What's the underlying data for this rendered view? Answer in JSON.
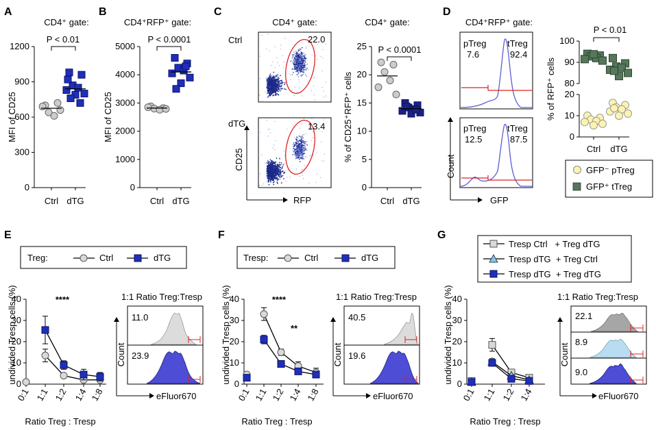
{
  "panels": {
    "A": {
      "letter": "A",
      "gate": "CD4⁺ gate:",
      "stat": "P < 0.01"
    },
    "B": {
      "letter": "B",
      "gate": "CD4⁺RFP⁺ gate:",
      "stat": "P < 0.0001"
    },
    "C": {
      "letter": "C",
      "gate1": "CD4⁺ gate:",
      "gate2": "CD4⁺ gate:",
      "stat": "P < 0.0001",
      "row1": "Ctrl",
      "row2": "dTG",
      "gate_pct_ctrl": "22.0",
      "gate_pct_dtg": "13.4",
      "flow_xlabel": "RFP",
      "flow_ylabel": "CD25"
    },
    "D": {
      "letter": "D",
      "gate": "CD4⁺RFP⁺ gate:",
      "stat": "P < 0.01",
      "hist_top": {
        "left_label": "pTreg",
        "left_val": "7.6",
        "right_label": "tTreg",
        "right_val": "92.4"
      },
      "hist_bottom": {
        "left_label": "pTreg",
        "left_val": "12.5",
        "right_label": "tTreg",
        "right_val": "87.5"
      },
      "hist_xlabel": "GFP",
      "hist_ylabel": "Count",
      "legend": [
        {
          "label": "GFP⁻ pTreg",
          "color": "#fdf3b0"
        },
        {
          "label": "GFP⁺ tTreg",
          "color": "#55775a"
        }
      ]
    },
    "E": {
      "letter": "E",
      "legend_title": "Treg:",
      "legend_items": [
        "Ctrl",
        "dTG"
      ],
      "sig": "****",
      "inset_title": "1:1 Ratio Treg:Tresp",
      "inset_values": [
        "11.0",
        "23.9"
      ],
      "inset_xlabel": "eFluor670",
      "inset_ylabel": "Count"
    },
    "F": {
      "letter": "F",
      "legend_title": "Tresp:",
      "legend_items": [
        "Ctrl",
        "dTG"
      ],
      "sig1": "****",
      "sig2": "**",
      "inset_title": "1:1 Ratio Treg:Tresp",
      "inset_values": [
        "40.5",
        "19.6"
      ],
      "inset_xlabel": "eFluor670",
      "inset_ylabel": "Count"
    },
    "G": {
      "letter": "G",
      "legend_items": [
        "Tresp Ctrl   + Treg dTG",
        "Tresp dTG  + Treg Ctrl",
        "Tresp dTG  + Treg dTG"
      ],
      "inset_title": "1:1 Ratio Treg:Tresp",
      "inset_values": [
        "22.1",
        "8.9",
        "9.0"
      ],
      "inset_xlabel": "eFluor670",
      "inset_ylabel": "Count"
    }
  },
  "chart_data": [
    {
      "id": "A",
      "type": "scatter",
      "ylabel": "MFI of CD25",
      "categories": [
        "Ctrl",
        "dTG"
      ],
      "yticks": [
        0,
        300,
        600,
        900,
        1200
      ],
      "ylim": [
        0,
        1200
      ],
      "series": [
        {
          "name": "Ctrl",
          "marker": "circle",
          "color": "#cccccc",
          "values": [
            700,
            720,
            640,
            610,
            690,
            660
          ],
          "mean": 675
        },
        {
          "name": "dTG",
          "marker": "square",
          "color": "#1f2fb8",
          "values": [
            980,
            960,
            870,
            850,
            830,
            800,
            790,
            760,
            720,
            920
          ],
          "mean": 840
        }
      ]
    },
    {
      "id": "B",
      "type": "scatter",
      "ylabel": "MFI of CD25",
      "categories": [
        "Ctrl",
        "dTG"
      ],
      "yticks": [
        0,
        1000,
        2000,
        3000,
        4000,
        5000
      ],
      "ylim": [
        0,
        5000
      ],
      "series": [
        {
          "name": "Ctrl",
          "marker": "circle",
          "color": "#cccccc",
          "values": [
            2880,
            2820,
            2800,
            2760,
            2850,
            2790
          ],
          "mean": 2820
        },
        {
          "name": "dTG",
          "marker": "square",
          "color": "#1f2fb8",
          "values": [
            4600,
            4400,
            4250,
            4150,
            4050,
            3900,
            3700,
            3500,
            4300
          ],
          "mean": 4100
        }
      ]
    },
    {
      "id": "C",
      "type": "scatter",
      "ylabel": "% of CD25⁺RFP⁺ cells",
      "categories": [
        "Ctrl",
        "dTG"
      ],
      "yticks": [
        0,
        5,
        10,
        15,
        20,
        25
      ],
      "ylim": [
        0,
        25
      ],
      "series": [
        {
          "name": "Ctrl",
          "marker": "circle",
          "color": "#cccccc",
          "values": [
            22.2,
            21.8,
            20.5,
            19.0,
            17.8,
            16.5
          ],
          "mean": 19.8
        },
        {
          "name": "dTG",
          "marker": "square",
          "color": "#1a237e",
          "values": [
            15.0,
            14.6,
            14.2,
            13.9,
            13.6,
            13.3,
            13.1,
            14.4,
            13.8
          ],
          "mean": 14.0
        }
      ]
    },
    {
      "id": "D",
      "type": "scatter",
      "ylabel": "% of RFP⁺ cells",
      "categories": [
        "Ctrl",
        "dTG"
      ],
      "yticks_top": [
        80,
        90,
        100
      ],
      "yticks_bottom": [
        0,
        10,
        20
      ],
      "ylim_top": [
        80,
        100
      ],
      "ylim_bottom": [
        0,
        20
      ],
      "series": [
        {
          "name": "GFP⁺ tTreg",
          "marker": "square",
          "color": "#55775a",
          "Ctrl": [
            94.0,
            93.2,
            92.8,
            92.0,
            91.5,
            90.8,
            93.8
          ],
          "dTG": [
            92.0,
            89.5,
            88.0,
            87.5,
            86.5,
            85.0,
            83.5,
            86.0
          ]
        },
        {
          "name": "GFP⁻ pTreg",
          "marker": "circle",
          "color": "#fdf3b0",
          "Ctrl": [
            10.0,
            9.0,
            8.2,
            7.5,
            7.0,
            6.2,
            5.5
          ],
          "dTG": [
            16.0,
            15.0,
            14.0,
            13.0,
            12.0,
            11.0,
            10.0,
            13.5
          ]
        }
      ]
    },
    {
      "id": "E",
      "type": "line",
      "ylabel": "undivided Tresp cells (%)",
      "xlabel": "Ratio Treg : Tresp",
      "categories": [
        "0:1",
        "1:1",
        "1:2",
        "1:4",
        "1:8"
      ],
      "yticks": [
        0,
        10,
        20,
        30,
        40
      ],
      "ylim": [
        0,
        40
      ],
      "series": [
        {
          "name": "Ctrl",
          "marker": "circle",
          "color": "#d9d9d9",
          "values": [
            1,
            13.5,
            4,
            2,
            2
          ],
          "err": [
            0,
            3,
            1,
            1,
            1
          ]
        },
        {
          "name": "dTG",
          "marker": "square",
          "color": "#1f2fb8",
          "values": [
            null,
            25.5,
            9,
            4.5,
            3.5
          ],
          "err": [
            0,
            6.5,
            2,
            2.5,
            2
          ]
        }
      ]
    },
    {
      "id": "F",
      "type": "line",
      "ylabel": "undivided Tresp cells (%)",
      "xlabel": "Ratio Treg : Tresp",
      "categories": [
        "0:1",
        "1:1",
        "1:2",
        "1:4",
        "1:8"
      ],
      "yticks": [
        0,
        10,
        20,
        30,
        40
      ],
      "ylim": [
        0,
        40
      ],
      "series": [
        {
          "name": "Ctrl",
          "marker": "circle",
          "color": "#d9d9d9",
          "values": [
            4.5,
            33,
            15,
            8.5,
            5.5
          ],
          "err": [
            0.5,
            3,
            1.5,
            2,
            2
          ]
        },
        {
          "name": "dTG",
          "marker": "square",
          "color": "#1f2fb8",
          "values": [
            3,
            21,
            9.5,
            6,
            4.5
          ],
          "err": [
            0.5,
            2,
            1,
            1,
            1.5
          ]
        }
      ]
    },
    {
      "id": "G",
      "type": "line",
      "ylabel": "undivided Tresp cells (%)",
      "xlabel": "Ratio Treg : Tresp",
      "categories": [
        "0:1",
        "1:1",
        "1:2",
        "1:4"
      ],
      "yticks": [
        0,
        10,
        20,
        30,
        40
      ],
      "ylim": [
        0,
        40
      ],
      "series": [
        {
          "name": "Tresp Ctrl + Treg dTG",
          "marker": "square",
          "color": "#d9d9d9",
          "values": [
            1.5,
            18.5,
            5.5,
            3
          ],
          "err": [
            0.3,
            3,
            0.8,
            0.6
          ]
        },
        {
          "name": "Tresp dTG + Treg Ctrl",
          "marker": "triangle",
          "color": "#87c5ea",
          "values": [
            1,
            10.5,
            4,
            2
          ],
          "err": [
            0.3,
            1.5,
            0.6,
            0.4
          ]
        },
        {
          "name": "Tresp dTG + Treg dTG",
          "marker": "square",
          "color": "#1f2fb8",
          "values": [
            1,
            10,
            2.5,
            1.5
          ],
          "err": [
            0.3,
            1.5,
            0.6,
            0.4
          ]
        }
      ]
    }
  ]
}
